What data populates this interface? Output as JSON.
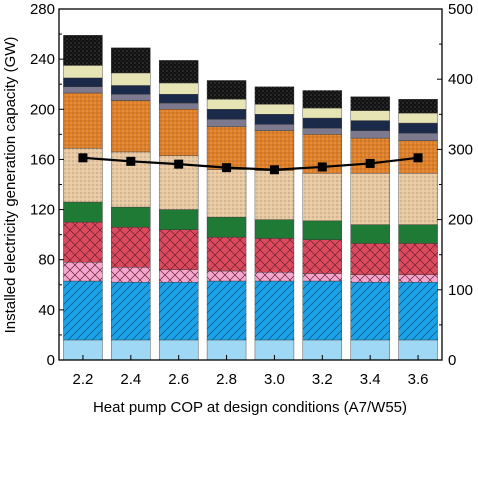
{
  "chart_data": {
    "type": "bar",
    "stacked": true,
    "categories": [
      "2.2",
      "2.4",
      "2.6",
      "2.8",
      "3.0",
      "3.2",
      "3.4",
      "3.6"
    ],
    "xlabel": "Heat pump COP at design conditions (A7/W55)",
    "ylabel": "Installed electricity generation capacity (GW)",
    "ylim": [
      0,
      280
    ],
    "yticks": [
      "0",
      "40",
      "80",
      "120",
      "160",
      "200",
      "240",
      "280"
    ],
    "y2lim": [
      0,
      500
    ],
    "y2ticks": [
      "0",
      "100",
      "200",
      "300",
      "400",
      "500"
    ],
    "grid": false,
    "legend": "none",
    "stack_segments": [
      {
        "color": "#9fd8f5",
        "pattern": "none",
        "values": [
          16,
          16,
          16,
          16,
          16,
          16,
          16,
          16
        ]
      },
      {
        "color": "#1aa3e8",
        "pattern": "diag",
        "values": [
          47,
          46,
          46,
          47,
          47,
          47,
          46,
          46
        ]
      },
      {
        "color": "#f4a6cf",
        "pattern": "cross",
        "values": [
          15,
          12,
          10,
          8,
          7,
          6,
          6,
          6
        ]
      },
      {
        "color": "#dc4a5e",
        "pattern": "cross",
        "values": [
          32,
          32,
          32,
          27,
          27,
          27,
          25,
          25
        ]
      },
      {
        "color": "#1e7a34",
        "pattern": "none",
        "values": [
          16,
          16,
          16,
          16,
          15,
          15,
          15,
          15
        ]
      },
      {
        "color": "#e9c9a1",
        "pattern": "dots",
        "values": [
          43,
          44,
          43,
          38,
          39,
          38,
          41,
          41
        ]
      },
      {
        "color": "#e07f26",
        "pattern": "dots",
        "values": [
          44,
          41,
          37,
          34,
          32,
          31,
          28,
          26
        ]
      },
      {
        "color": "#7d7a8f",
        "pattern": "none",
        "values": [
          5,
          5,
          5,
          6,
          5,
          5,
          6,
          6
        ]
      },
      {
        "color": "#1c2a4a",
        "pattern": "none",
        "values": [
          7,
          7,
          7,
          8,
          8,
          8,
          8,
          8
        ]
      },
      {
        "color": "#e6e3b5",
        "pattern": "none",
        "values": [
          10,
          10,
          9,
          8,
          8,
          8,
          8,
          8
        ]
      },
      {
        "color": "#111111",
        "pattern": "dots",
        "values": [
          24,
          20,
          18,
          15,
          14,
          14,
          11,
          11
        ]
      }
    ],
    "series": [
      {
        "axis": "right",
        "type": "line",
        "marker": "square",
        "color": "#000000",
        "values": [
          288,
          283,
          279,
          274,
          271,
          275,
          280,
          288
        ]
      }
    ]
  }
}
